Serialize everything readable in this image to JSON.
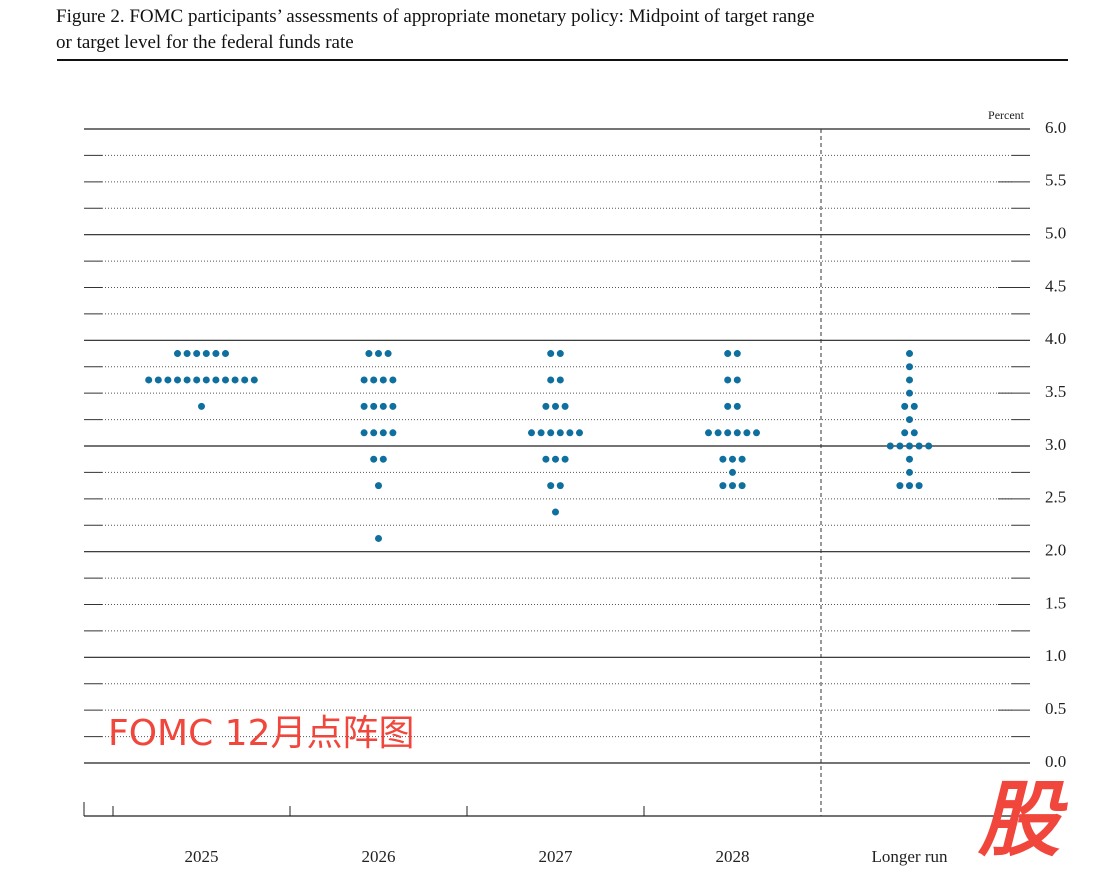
{
  "chart_data": {
    "type": "dot",
    "title_lines": [
      "Figure 2. FOMC participants’ assessments of appropriate monetary policy: Midpoint of target range",
      "or target level for the federal funds rate"
    ],
    "y_unit_label": "Percent",
    "categories": [
      "2025",
      "2026",
      "2027",
      "2028",
      "Longer run"
    ],
    "values": [
      [
        3.875,
        3.875,
        3.875,
        3.875,
        3.875,
        3.875,
        3.625,
        3.625,
        3.625,
        3.625,
        3.625,
        3.625,
        3.625,
        3.625,
        3.625,
        3.625,
        3.625,
        3.625,
        3.375
      ],
      [
        3.875,
        3.875,
        3.875,
        3.625,
        3.625,
        3.625,
        3.625,
        3.375,
        3.375,
        3.375,
        3.375,
        3.125,
        3.125,
        3.125,
        3.125,
        2.875,
        2.875,
        2.625,
        2.125
      ],
      [
        3.875,
        3.875,
        3.625,
        3.625,
        3.375,
        3.375,
        3.375,
        3.125,
        3.125,
        3.125,
        3.125,
        3.125,
        3.125,
        2.875,
        2.875,
        2.875,
        2.625,
        2.625,
        2.375
      ],
      [
        3.875,
        3.875,
        3.625,
        3.625,
        3.375,
        3.375,
        3.125,
        3.125,
        3.125,
        3.125,
        3.125,
        3.125,
        2.875,
        2.875,
        2.875,
        2.75,
        2.625,
        2.625,
        2.625
      ],
      [
        3.875,
        3.75,
        3.625,
        3.5,
        3.375,
        3.375,
        3.25,
        3.125,
        3.125,
        3,
        3,
        3,
        3,
        3,
        2.875,
        2.75,
        2.625,
        2.625,
        2.625
      ]
    ],
    "color": "#0f6f9f",
    "ylim": [
      0,
      6
    ],
    "yticks": [
      {
        "value": 0,
        "label": "0.0"
      },
      {
        "value": 0.5,
        "label": "0.5"
      },
      {
        "value": 1,
        "label": "1.0"
      },
      {
        "value": 1.5,
        "label": "1.5"
      },
      {
        "value": 2,
        "label": "2.0"
      },
      {
        "value": 2.5,
        "label": "2.5"
      },
      {
        "value": 3,
        "label": "3.0"
      },
      {
        "value": 3.5,
        "label": "3.5"
      },
      {
        "value": 4,
        "label": "4.0"
      },
      {
        "value": 4.5,
        "label": "4.5"
      },
      {
        "value": 5,
        "label": "5.0"
      },
      {
        "value": 5.5,
        "label": "5.5"
      },
      {
        "value": 6,
        "label": "6.0"
      }
    ],
    "yminor_ticks": [
      0.25,
      0.75,
      1.25,
      1.75,
      2.25,
      2.75,
      3.25,
      3.75,
      4.25,
      4.75,
      5.25,
      5.75
    ],
    "grid": true,
    "watermark": "FOMC 12月点阵图",
    "logo": "股"
  }
}
